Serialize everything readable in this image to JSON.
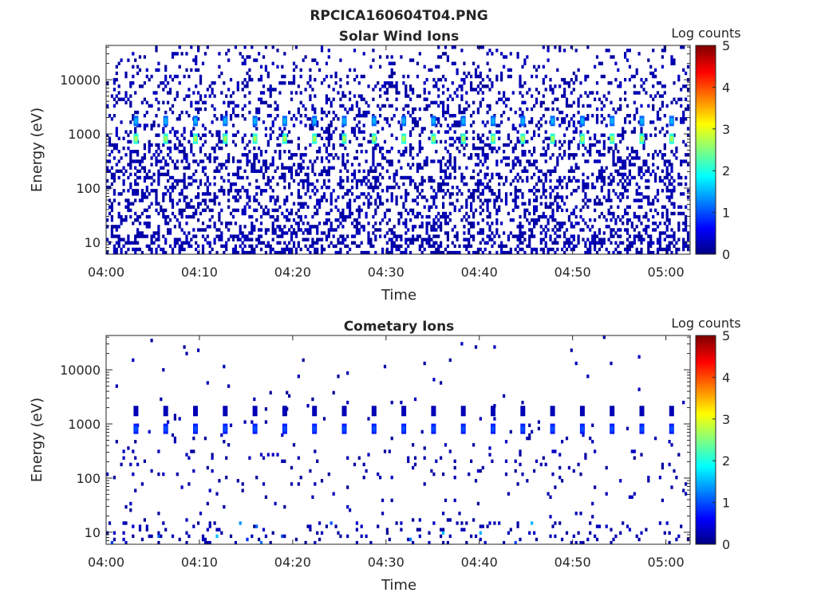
{
  "figure_title": "RPCICA160604T04.PNG",
  "chart_data": [
    {
      "type": "heatmap",
      "title": "Solar Wind Ions",
      "xlabel": "Time",
      "ylabel": "Energy (eV)",
      "xticks": [
        "04:00",
        "04:10",
        "04:20",
        "04:30",
        "04:40",
        "04:50",
        "05:00"
      ],
      "xtick_minutes": [
        0,
        10,
        20,
        30,
        40,
        50,
        60
      ],
      "xlim_minutes": [
        0,
        62.6
      ],
      "yscale": "log",
      "yticks": [
        "10",
        "100",
        "1000",
        "10000"
      ],
      "ytick_values": [
        10,
        100,
        1000,
        10000
      ],
      "ylim": [
        6,
        43000
      ],
      "colorbar": {
        "label": "Log counts",
        "ticks": [
          "0",
          "1",
          "2",
          "3",
          "4",
          "5"
        ],
        "clim": [
          0,
          5
        ],
        "colormap": "jet"
      },
      "background_density": 0.3,
      "pulses": {
        "start_minute": 3.2,
        "period_minutes": 3.19,
        "count": 19,
        "energies_eV": [
          800,
          1700
        ],
        "log_counts": [
          2.7,
          1.5
        ]
      }
    },
    {
      "type": "heatmap",
      "title": "Cometary Ions",
      "xlabel": "Time",
      "ylabel": "Energy (eV)",
      "xticks": [
        "04:00",
        "04:10",
        "04:20",
        "04:30",
        "04:40",
        "04:50",
        "05:00"
      ],
      "xtick_minutes": [
        0,
        10,
        20,
        30,
        40,
        50,
        60
      ],
      "xlim_minutes": [
        0,
        62.6
      ],
      "yscale": "log",
      "yticks": [
        "10",
        "100",
        "1000",
        "10000"
      ],
      "ytick_values": [
        10,
        100,
        1000,
        10000
      ],
      "ylim": [
        6,
        43000
      ],
      "colorbar": {
        "label": "Log counts",
        "ticks": [
          "0",
          "1",
          "2",
          "3",
          "4",
          "5"
        ],
        "clim": [
          0,
          5
        ],
        "colormap": "jet"
      },
      "background_density": 0.06,
      "pulses": {
        "start_minute": 3.2,
        "period_minutes": 3.19,
        "count": 19,
        "energies_eV": [
          800,
          1700
        ],
        "log_counts": [
          1.0,
          0.3
        ]
      }
    }
  ]
}
